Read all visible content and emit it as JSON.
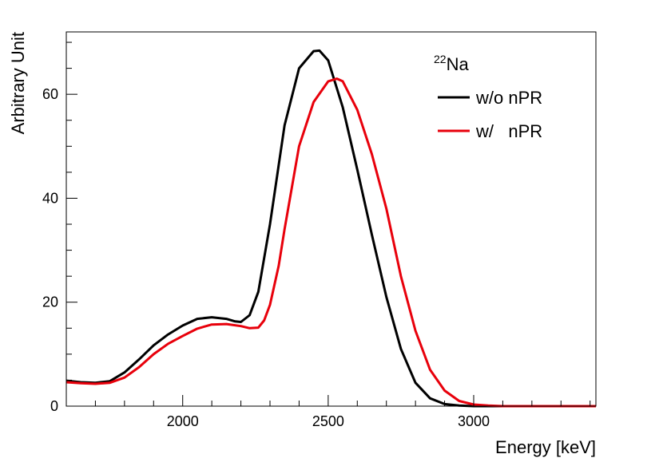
{
  "chart_data": {
    "type": "line",
    "title": "",
    "xlabel": "Energy [keV]",
    "ylabel": "Arbitrary Unit",
    "xlim": [
      1600,
      3420
    ],
    "ylim": [
      0,
      72
    ],
    "xticks": [
      2000,
      2500,
      3000
    ],
    "xtick_labels": [
      "2000",
      "2500",
      "3000"
    ],
    "yticks": [
      0,
      20,
      40,
      60
    ],
    "ytick_labels": [
      "0",
      "20",
      "40",
      "60"
    ],
    "grid": false,
    "legend_placement": "top-right",
    "legend_header": {
      "superscript": "22",
      "text": "Na"
    },
    "series": [
      {
        "name": "w/o nPR",
        "color": "#000000",
        "x": [
          1600,
          1650,
          1700,
          1750,
          1800,
          1850,
          1900,
          1950,
          2000,
          2050,
          2100,
          2150,
          2180,
          2200,
          2230,
          2260,
          2300,
          2350,
          2400,
          2450,
          2470,
          2500,
          2550,
          2600,
          2650,
          2700,
          2750,
          2800,
          2850,
          2900,
          2950,
          3000,
          3050,
          3100,
          3200,
          3300,
          3420
        ],
        "y": [
          4.9,
          4.6,
          4.5,
          4.8,
          6.5,
          9.0,
          11.7,
          13.8,
          15.5,
          16.8,
          17.1,
          16.8,
          16.3,
          16.2,
          17.5,
          22.0,
          35.0,
          54.0,
          65.0,
          68.3,
          68.4,
          66.5,
          57.5,
          45.5,
          33.0,
          21.0,
          11.0,
          4.5,
          1.5,
          0.4,
          0.1,
          0,
          0,
          0,
          0,
          0,
          0
        ]
      },
      {
        "name": "w/   nPR",
        "color": "#e8000b",
        "x": [
          1600,
          1650,
          1700,
          1750,
          1800,
          1850,
          1900,
          1950,
          2000,
          2050,
          2100,
          2150,
          2200,
          2230,
          2260,
          2280,
          2300,
          2330,
          2350,
          2400,
          2450,
          2500,
          2530,
          2550,
          2600,
          2650,
          2700,
          2750,
          2800,
          2850,
          2900,
          2950,
          3000,
          3050,
          3100,
          3200,
          3300,
          3420
        ],
        "y": [
          4.6,
          4.4,
          4.3,
          4.5,
          5.5,
          7.5,
          10.0,
          12.0,
          13.5,
          14.9,
          15.7,
          15.8,
          15.4,
          15.0,
          15.1,
          16.5,
          19.5,
          27.0,
          34.0,
          50.0,
          58.5,
          62.5,
          63.0,
          62.5,
          57.0,
          48.5,
          38.0,
          25.0,
          14.5,
          7.0,
          3.0,
          1.0,
          0.3,
          0.1,
          0,
          0,
          0,
          0
        ]
      }
    ]
  }
}
